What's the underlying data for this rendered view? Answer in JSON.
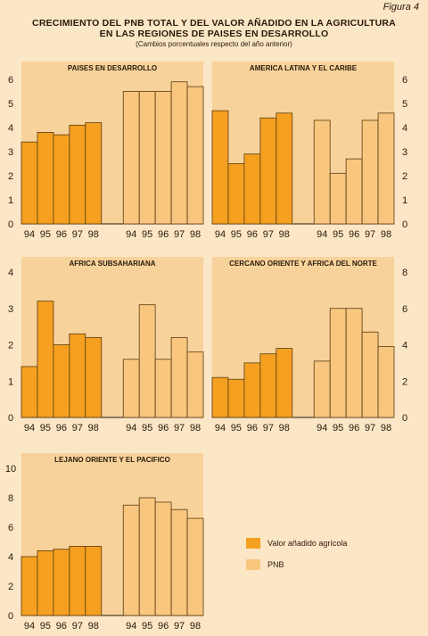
{
  "figure_label": "Figura 4",
  "title_lines": [
    "CRECIMIENTO DEL PNB TOTAL Y DEL VALOR AÑADIDO EN LA AGRICULTURA",
    "EN LAS REGIONES DE PAISES EN DESARROLLO"
  ],
  "subtitle": "(Cambios porcentuales respecto del año anterior)",
  "legend": {
    "items": [
      {
        "label": "Valor añadido agrícola",
        "color": "#f5a020"
      },
      {
        "label": "PNB",
        "color": "#f8c67e"
      }
    ]
  },
  "chart_data": [
    {
      "type": "bar",
      "title": "PAISES EN DESARROLLO",
      "categories": [
        "94",
        "95",
        "96",
        "97",
        "98"
      ],
      "series": [
        {
          "name": "Valor añadido agrícola",
          "values": [
            3.4,
            3.8,
            3.7,
            4.1,
            4.2
          ]
        },
        {
          "name": "PNB",
          "values": [
            5.5,
            5.5,
            5.5,
            5.9,
            5.7
          ]
        }
      ],
      "ylim": [
        0,
        6
      ],
      "yticks": [
        0,
        1,
        2,
        3,
        4,
        5,
        6
      ],
      "axis_side": "left"
    },
    {
      "type": "bar",
      "title": "AMERICA LATINA Y EL CARIBE",
      "categories": [
        "94",
        "95",
        "96",
        "97",
        "98"
      ],
      "series": [
        {
          "name": "Valor añadido agrícola",
          "values": [
            4.7,
            2.5,
            2.9,
            4.4,
            4.6
          ]
        },
        {
          "name": "PNB",
          "values": [
            4.3,
            2.1,
            2.7,
            4.3,
            4.6
          ]
        }
      ],
      "ylim": [
        0,
        6
      ],
      "yticks": [
        0,
        1,
        2,
        3,
        4,
        5,
        6
      ],
      "axis_side": "right"
    },
    {
      "type": "bar",
      "title": "AFRICA SUBSAHARIANA",
      "categories": [
        "94",
        "95",
        "96",
        "97",
        "98"
      ],
      "series": [
        {
          "name": "Valor añadido agrícola",
          "values": [
            1.4,
            3.2,
            2.0,
            2.3,
            2.2
          ]
        },
        {
          "name": "PNB",
          "values": [
            1.6,
            3.1,
            1.6,
            2.2,
            1.8
          ]
        }
      ],
      "ylim": [
        0,
        4
      ],
      "yticks": [
        0,
        1,
        2,
        3,
        4
      ],
      "axis_side": "left"
    },
    {
      "type": "bar",
      "title": "CERCANO ORIENTE Y AFRICA DEL NORTE",
      "categories": [
        "94",
        "95",
        "96",
        "97",
        "98"
      ],
      "series": [
        {
          "name": "Valor añadido agrícola",
          "values": [
            2.2,
            2.1,
            3.0,
            3.5,
            3.8
          ]
        },
        {
          "name": "PNB",
          "values": [
            3.1,
            6.0,
            6.0,
            4.7,
            3.9
          ]
        }
      ],
      "ylim": [
        0,
        8
      ],
      "yticks": [
        0,
        2,
        4,
        6,
        8
      ],
      "axis_side": "right"
    },
    {
      "type": "bar",
      "title": "LEJANO ORIENTE Y EL PACIFICO",
      "categories": [
        "94",
        "95",
        "96",
        "97",
        "98"
      ],
      "series": [
        {
          "name": "Valor añadido agrícola",
          "values": [
            4.0,
            4.4,
            4.5,
            4.7,
            4.7
          ]
        },
        {
          "name": "PNB",
          "values": [
            7.5,
            8.0,
            7.7,
            7.2,
            6.6
          ]
        }
      ],
      "ylim": [
        0,
        10
      ],
      "yticks": [
        0,
        2,
        4,
        6,
        8,
        10
      ],
      "axis_side": "left"
    }
  ]
}
